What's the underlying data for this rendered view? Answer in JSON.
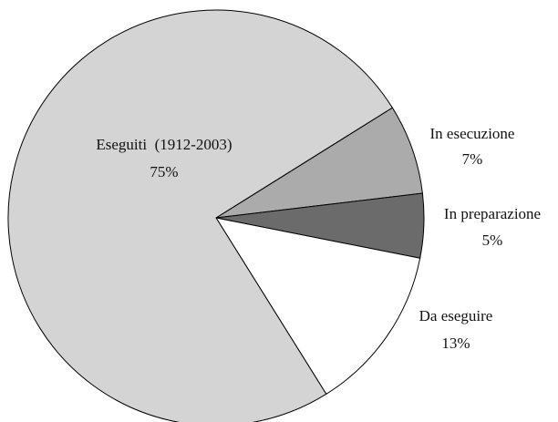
{
  "chart_data": {
    "type": "pie",
    "categories": [
      "In esecuzione",
      "In preparazione",
      "Da eseguire",
      "Eseguiti  (1912-2003)"
    ],
    "values": [
      7,
      5,
      13,
      75
    ],
    "value_labels": [
      "7%",
      "5%",
      "13%",
      "75%"
    ],
    "colors": [
      "#ababab",
      "#6b6b6b",
      "#ffffff",
      "#d4d4d4"
    ]
  }
}
